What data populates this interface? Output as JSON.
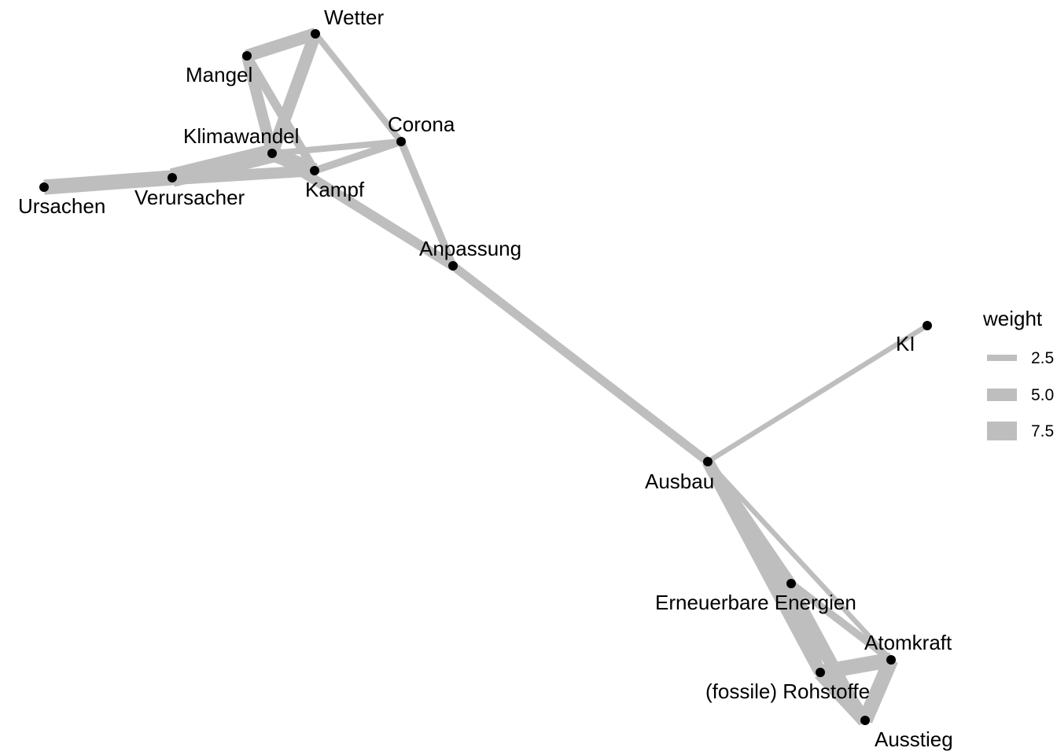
{
  "network": {
    "edge_color": "#bebebe",
    "node_color": "#000000",
    "nodes": [
      {
        "id": "wetter",
        "label": "Wetter"
      },
      {
        "id": "mangel",
        "label": "Mangel"
      },
      {
        "id": "corona",
        "label": "Corona"
      },
      {
        "id": "klimawandel",
        "label": "Klimawandel"
      },
      {
        "id": "kampf",
        "label": "Kampf"
      },
      {
        "id": "ursachen",
        "label": "Ursachen"
      },
      {
        "id": "verursacher",
        "label": "Verursacher"
      },
      {
        "id": "anpassung",
        "label": "Anpassung"
      },
      {
        "id": "ki",
        "label": "KI"
      },
      {
        "id": "ausbau",
        "label": "Ausbau"
      },
      {
        "id": "erneuerbare",
        "label": "Erneuerbare Energien"
      },
      {
        "id": "atomkraft",
        "label": "Atomkraft"
      },
      {
        "id": "rohstoffe",
        "label": "(fossile) Rohstoffe"
      },
      {
        "id": "ausstieg",
        "label": "Ausstieg"
      }
    ],
    "edges": [
      {
        "source": "mangel",
        "target": "wetter",
        "weight": 5
      },
      {
        "source": "wetter",
        "target": "klimawandel",
        "weight": 5
      },
      {
        "source": "wetter",
        "target": "corona",
        "weight": 2.5
      },
      {
        "source": "mangel",
        "target": "klimawandel",
        "weight": 4.5
      },
      {
        "source": "mangel",
        "target": "kampf",
        "weight": 3.5
      },
      {
        "source": "ursachen",
        "target": "verursacher",
        "weight": 6
      },
      {
        "source": "ursachen",
        "target": "kampf",
        "weight": 4.5
      },
      {
        "source": "verursacher",
        "target": "klimawandel",
        "weight": 7.5
      },
      {
        "source": "verursacher",
        "target": "kampf",
        "weight": 4
      },
      {
        "source": "klimawandel",
        "target": "kampf",
        "weight": 6
      },
      {
        "source": "klimawandel",
        "target": "corona",
        "weight": 2.5
      },
      {
        "source": "kampf",
        "target": "corona",
        "weight": 3
      },
      {
        "source": "corona",
        "target": "anpassung",
        "weight": 3
      },
      {
        "source": "klimawandel",
        "target": "anpassung",
        "weight": 4
      },
      {
        "source": "anpassung",
        "target": "ausbau",
        "weight": 3.5
      },
      {
        "source": "ausbau",
        "target": "ki",
        "weight": 2
      },
      {
        "source": "ausbau",
        "target": "erneuerbare",
        "weight": 4
      },
      {
        "source": "ausbau",
        "target": "atomkraft",
        "weight": 2
      },
      {
        "source": "ausbau",
        "target": "rohstoffe",
        "weight": 5
      },
      {
        "source": "ausbau",
        "target": "ausstieg",
        "weight": 4.5
      },
      {
        "source": "erneuerbare",
        "target": "atomkraft",
        "weight": 3
      },
      {
        "source": "erneuerbare",
        "target": "rohstoffe",
        "weight": 4
      },
      {
        "source": "erneuerbare",
        "target": "ausstieg",
        "weight": 3
      },
      {
        "source": "rohstoffe",
        "target": "atomkraft",
        "weight": 6
      },
      {
        "source": "rohstoffe",
        "target": "ausstieg",
        "weight": 6
      },
      {
        "source": "atomkraft",
        "target": "ausstieg",
        "weight": 6
      }
    ]
  },
  "legend": {
    "title": "weight",
    "items": [
      {
        "label": "2.5",
        "value": 2.5
      },
      {
        "label": "5.0",
        "value": 5.0
      },
      {
        "label": "7.5",
        "value": 7.5
      }
    ]
  }
}
